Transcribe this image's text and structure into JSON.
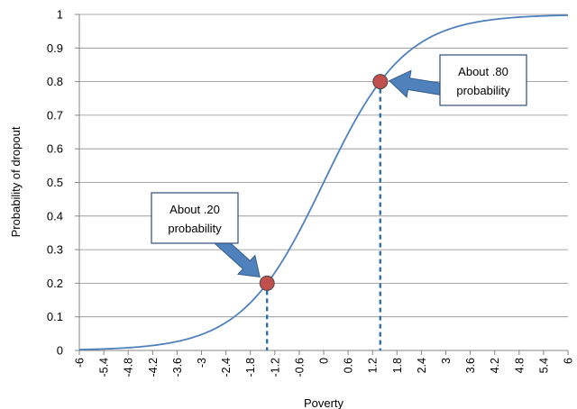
{
  "chart_data": {
    "type": "line",
    "title": "",
    "xlabel": "Poverty",
    "ylabel": "Probability of dropout",
    "xlim": [
      -6,
      6
    ],
    "ylim": [
      0,
      1
    ],
    "grid": true,
    "x_ticks": [
      "-6",
      "-5.4",
      "-4.8",
      "-4.2",
      "-3.6",
      "-3",
      "-2.4",
      "-1.8",
      "-1.2",
      "-0.6",
      "0",
      "0.6",
      "1.2",
      "1.8",
      "2.4",
      "3",
      "3.6",
      "4.2",
      "4.8",
      "5.4",
      "6"
    ],
    "y_ticks": [
      "0",
      "0.1",
      "0.2",
      "0.3",
      "0.4",
      "0.5",
      "0.6",
      "0.7",
      "0.8",
      "0.9",
      "1"
    ],
    "curve": {
      "x": [
        -6,
        -5.4,
        -4.8,
        -4.2,
        -3.6,
        -3,
        -2.4,
        -1.8,
        -1.2,
        -0.6,
        0,
        0.6,
        1.2,
        1.8,
        2.4,
        3,
        3.6,
        4.2,
        4.8,
        5.4,
        6
      ],
      "y": [
        0.002,
        0.005,
        0.008,
        0.015,
        0.027,
        0.047,
        0.083,
        0.142,
        0.233,
        0.358,
        0.5,
        0.642,
        0.767,
        0.858,
        0.917,
        0.953,
        0.973,
        0.985,
        0.992,
        0.995,
        0.998
      ]
    },
    "points": [
      {
        "x": -1.39,
        "y": 0.2
      },
      {
        "x": 1.39,
        "y": 0.8
      }
    ],
    "annotations": [
      {
        "line1": "About .20",
        "line2": "probability"
      },
      {
        "line1": "About .80",
        "line2": "probability"
      }
    ],
    "colors": {
      "curve": "#4f81bd",
      "point_fill": "#c0504d",
      "point_stroke": "#4a4a4a",
      "dashed": "#2e6fb0",
      "arrow_fill": "#4f81bd",
      "arrow_stroke": "#385d8a",
      "box_stroke": "#2e4e7e",
      "grid": "#8c8c8c"
    }
  }
}
